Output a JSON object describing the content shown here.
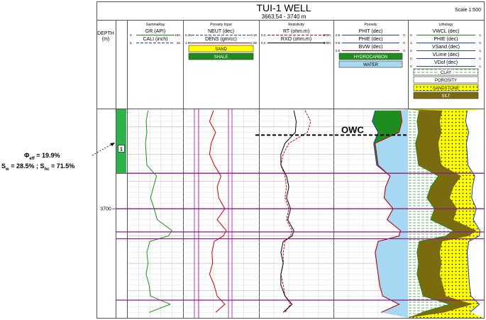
{
  "header": {
    "title": "TUI-1 WELL",
    "subtitle": "3663.54 - 3740 m",
    "scale": "Scale 1:500"
  },
  "depth_track": {
    "label": "DEPTH",
    "unit": "(m)",
    "tick_label": "3700"
  },
  "zone": {
    "number": "1",
    "color": "#2db34a"
  },
  "annotation": {
    "phi_symbol": "Φ",
    "phi_sub": "eff",
    "phi_value": "= 19.9%",
    "sw_symbol": "S",
    "sw_sub": "w",
    "sw_value": "= 28.5% ; ",
    "sh_symbol": "S",
    "sh_sub": "hc",
    "sh_value": "= 71.5%"
  },
  "owc_label": "OWC",
  "tracks": [
    {
      "id": "gammaray",
      "title": "GammaRay",
      "curves": [
        {
          "name": "GR (API)",
          "min": "0.",
          "max": "150.",
          "color": "#1a8c1a",
          "dash": "none"
        },
        {
          "name": "CALI (inch)",
          "min": "6.",
          "max": "16.",
          "color": "#1b3fbf",
          "dash": "4,2"
        }
      ],
      "fills": []
    },
    {
      "id": "porosity-input",
      "title": "Porosity Input",
      "curves": [
        {
          "name": "NEUT (dec)",
          "min": "0.45",
          "max": "-0.15",
          "color": "#1b3fbf",
          "dash": "4,2"
        },
        {
          "name": "DENS (gm/cc)",
          "min": "1.95",
          "max": "2.95",
          "color": "#cc0000",
          "dash": "none"
        }
      ],
      "fills": [
        {
          "name": "SAND",
          "color": "#ffff00",
          "text": "#000000"
        },
        {
          "name": "SHALE",
          "color": "#1e8c1e",
          "text": "#ffffff"
        }
      ]
    },
    {
      "id": "resistivity",
      "title": "Resistivity",
      "curves": [
        {
          "name": "RT (ohm.m)",
          "min": "0.2",
          "max": "2000.",
          "color": "#cc0000",
          "dash": "4,2"
        },
        {
          "name": "RXO (ohm.m)",
          "min": "0.2",
          "max": "2000.",
          "color": "#000000",
          "dash": "none"
        }
      ],
      "fills": []
    },
    {
      "id": "porosity",
      "title": "Porosity",
      "curves": [
        {
          "name": "PHIT (dec)",
          "min": "0.5",
          "max": "0.",
          "color": "#1b3fbf",
          "dash": "none"
        },
        {
          "name": "PHIE (dec)",
          "min": "0.5",
          "max": "0.",
          "color": "#1b3fbf",
          "dash": "none"
        },
        {
          "name": "BVW (dec)",
          "min": "0.5",
          "max": "0.",
          "color": "#cc0000",
          "dash": "none"
        }
      ],
      "fills": [
        {
          "name": "HYDROCARBON",
          "color": "#1e8c1e",
          "text": "#ffffff"
        },
        {
          "name": "WATER",
          "color": "#a6d8f2",
          "text": "#000000"
        }
      ]
    },
    {
      "id": "lithology",
      "title": "Lithology",
      "curves": [
        {
          "name": "VWCL (dec)",
          "min": "0.",
          "max": "1.",
          "color": "#1a8c1a",
          "dash": "none"
        },
        {
          "name": "PHIE (dec)",
          "min": "1.",
          "max": "0.",
          "color": "#1b3fbf",
          "dash": "none"
        },
        {
          "name": "VSand (dec)",
          "min": "0.",
          "max": "1.",
          "color": "#1b3fbf",
          "dash": "none"
        },
        {
          "name": "VLime (dec)",
          "min": "0.",
          "max": "1.",
          "color": "#1b3fbf",
          "dash": "none"
        },
        {
          "name": "VDol (dec)",
          "min": "0.",
          "max": "1.",
          "color": "#1b3fbf",
          "dash": "none"
        }
      ],
      "fills": [
        {
          "name": "CLAY",
          "color": "#ffffff",
          "text": "#000000",
          "pattern": "clay"
        },
        {
          "name": "POROSITY",
          "color": "#ffffff",
          "text": "#000000"
        },
        {
          "name": "SANDSTONE",
          "color": "#ffff00",
          "text": "#000000",
          "pattern": "dots"
        },
        {
          "name": "SILT",
          "color": "#7a6a10",
          "text": "#ffffff"
        }
      ]
    }
  ],
  "chart_data": {
    "type": "line",
    "title": "TUI-1 WELL",
    "subtitle": "3663.54 - 3740 m",
    "depth_range_m": [
      3663.54,
      3740
    ],
    "depth_ticks": [
      3700
    ],
    "owc_depth_m": 3673,
    "zone_1": {
      "top_m": 3663.54,
      "bottom_m": 3687
    },
    "zone_boundaries_m": [
      3687,
      3700,
      3708.5,
      3711,
      3733.5
    ],
    "series": [
      {
        "name": "GR (API)",
        "track": "gammaray",
        "depth": [
          3664,
          3668,
          3672,
          3676,
          3680,
          3684,
          3688,
          3692,
          3696,
          3700,
          3704,
          3708,
          3710,
          3712,
          3716,
          3720,
          3724,
          3728,
          3732,
          3735,
          3738
        ],
        "values": [
          55,
          50,
          52,
          48,
          50,
          52,
          78,
          70,
          62,
          72,
          80,
          120,
          110,
          60,
          52,
          55,
          50,
          58,
          62,
          115,
          58
        ]
      },
      {
        "name": "DENS (gm/cc)",
        "track": "porosity-input",
        "depth": [
          3664,
          3668,
          3672,
          3676,
          3680,
          3684,
          3688,
          3692,
          3696,
          3700,
          3704,
          3708,
          3710,
          3712,
          3716,
          3720,
          3724,
          3728,
          3732,
          3735,
          3738
        ],
        "values": [
          2.35,
          2.3,
          2.38,
          2.32,
          2.3,
          2.36,
          2.45,
          2.4,
          2.42,
          2.5,
          2.4,
          2.52,
          2.48,
          2.36,
          2.33,
          2.34,
          2.3,
          2.36,
          2.4,
          2.5,
          2.38
        ]
      },
      {
        "name": "RT (ohm.m)",
        "track": "resistivity",
        "depth": [
          3664,
          3668,
          3672,
          3676,
          3680,
          3684,
          3688,
          3692,
          3696,
          3700,
          3704,
          3708,
          3710,
          3712,
          3716,
          3720,
          3724,
          3728,
          3732,
          3735,
          3738
        ],
        "values": [
          60,
          120,
          80,
          8,
          4,
          3,
          5,
          6,
          5,
          8,
          6,
          12,
          10,
          5,
          4,
          4,
          3,
          4,
          5,
          10,
          5
        ]
      },
      {
        "name": "RXO (ohm.m)",
        "track": "resistivity",
        "depth": [
          3664,
          3668,
          3672,
          3676,
          3680,
          3684,
          3688,
          3692,
          3696,
          3700,
          3704,
          3708,
          3710,
          3712,
          3716,
          3720,
          3724,
          3728,
          3732,
          3735,
          3738
        ],
        "values": [
          15,
          20,
          18,
          5,
          3,
          3,
          6,
          8,
          6,
          10,
          7,
          15,
          12,
          4,
          3,
          4,
          3,
          3,
          5,
          12,
          4
        ]
      },
      {
        "name": "PHIE (dec)",
        "track": "porosity",
        "depth": [
          3664,
          3668,
          3672,
          3676,
          3680,
          3684,
          3688,
          3692,
          3696,
          3700,
          3704,
          3708,
          3710,
          3712,
          3716,
          3720,
          3724,
          3728,
          3732,
          3735,
          3738
        ],
        "values": [
          0.22,
          0.24,
          0.2,
          0.23,
          0.22,
          0.21,
          0.12,
          0.15,
          0.16,
          0.1,
          0.14,
          0.05,
          0.06,
          0.2,
          0.22,
          0.21,
          0.2,
          0.19,
          0.17,
          0.06,
          0.18
        ]
      },
      {
        "name": "BVW (dec)",
        "track": "porosity",
        "depth": [
          3664,
          3668,
          3672,
          3676,
          3680,
          3684,
          3688,
          3692,
          3696,
          3700,
          3704,
          3708,
          3710,
          3712,
          3716,
          3720,
          3724,
          3728,
          3732,
          3735,
          3738
        ],
        "values": [
          0.05,
          0.04,
          0.06,
          0.22,
          0.21,
          0.2,
          0.12,
          0.15,
          0.16,
          0.1,
          0.14,
          0.05,
          0.06,
          0.2,
          0.22,
          0.21,
          0.2,
          0.19,
          0.17,
          0.06,
          0.18
        ]
      },
      {
        "name": "VWCL (dec)",
        "track": "lithology",
        "depth": [
          3664,
          3668,
          3672,
          3676,
          3680,
          3684,
          3688,
          3692,
          3696,
          3700,
          3704,
          3708,
          3710,
          3712,
          3716,
          3720,
          3724,
          3728,
          3732,
          3735,
          3738
        ],
        "values": [
          0.15,
          0.12,
          0.14,
          0.1,
          0.12,
          0.14,
          0.4,
          0.3,
          0.25,
          0.35,
          0.3,
          0.6,
          0.5,
          0.15,
          0.12,
          0.14,
          0.12,
          0.16,
          0.2,
          0.55,
          0.18
        ]
      }
    ]
  }
}
